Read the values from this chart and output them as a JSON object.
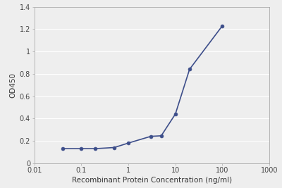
{
  "x": [
    0.04,
    0.1,
    0.2,
    0.5,
    1,
    3,
    5,
    10,
    20,
    100
  ],
  "y": [
    0.13,
    0.13,
    0.13,
    0.14,
    0.18,
    0.24,
    0.245,
    0.44,
    0.84,
    1.23
  ],
  "line_color": "#3d4e8a",
  "marker_color": "#3d4e8a",
  "marker_size": 3.5,
  "line_width": 1.2,
  "xlabel": "Recombinant Protein Concentration (ng/ml)",
  "ylabel": "OD450",
  "xlim": [
    0.01,
    1000
  ],
  "ylim": [
    0,
    1.4
  ],
  "yticks": [
    0,
    0.2,
    0.4,
    0.6,
    0.8,
    1.0,
    1.2,
    1.4
  ],
  "ytick_labels": [
    "0",
    "0.2",
    "0.4",
    "0.6",
    "0.8",
    "1",
    "1.2",
    "1.4"
  ],
  "xtick_positions": [
    0.01,
    0.1,
    1,
    10,
    100,
    1000
  ],
  "xtick_labels": [
    "0.01",
    "0.1",
    "1",
    "10",
    "100",
    "1000"
  ],
  "background_color": "#eeeeee",
  "plot_bg_color": "#eeeeee",
  "grid_color": "#ffffff",
  "label_fontsize": 7.5,
  "tick_fontsize": 7,
  "spine_color": "#aaaaaa"
}
